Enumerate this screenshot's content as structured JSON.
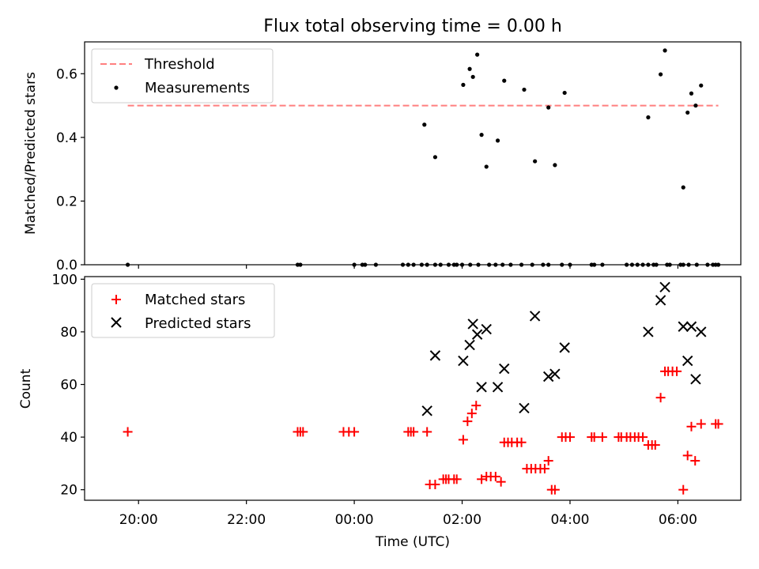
{
  "title": "Flux total observing time = 0.00 h",
  "chart_data": [
    {
      "type": "scatter",
      "ylabel": "Matched/Predicted stars",
      "xlim": [
        "19:00",
        "07:10"
      ],
      "ylim": [
        0,
        0.7
      ],
      "yticks": [
        "0.0",
        "0.2",
        "0.4",
        "0.6"
      ],
      "ytick_values": [
        0,
        0.2,
        0.4,
        0.6
      ],
      "xtick_hours": [
        20,
        22,
        24,
        26,
        28,
        30
      ],
      "grid": false,
      "legend_position": "upper-left",
      "legend": [
        {
          "label": "Threshold"
        },
        {
          "label": "Measurements"
        }
      ],
      "threshold": {
        "name": "Threshold",
        "value": 0.5,
        "x_start": "19:48",
        "x_end": "06:45",
        "color": "#ff7f7f"
      },
      "series": [
        {
          "name": "Measurements",
          "color": "#000000",
          "x_hours": [
            19.8,
            22.95,
            23.0,
            24.0,
            24.15,
            24.2,
            25.0,
            25.1,
            25.25,
            25.35,
            25.5,
            25.6,
            25.75,
            25.85,
            25.9,
            26.0,
            26.15,
            26.3,
            26.5,
            26.62,
            26.75,
            26.9,
            27.1,
            27.3,
            27.5,
            27.6,
            27.85,
            28.0,
            28.4,
            28.45,
            28.6,
            29.05,
            29.15,
            29.25,
            29.35,
            29.45,
            29.55,
            29.6,
            29.8,
            29.85,
            30.05,
            30.1,
            30.2,
            30.35,
            30.55,
            30.65,
            30.7,
            30.75,
            24.4,
            24.9,
            25.3,
            25.5,
            26.02,
            26.14,
            26.2,
            26.28,
            26.36,
            26.45,
            26.66,
            26.78,
            27.15,
            27.35,
            27.6,
            27.72,
            27.9,
            29.45,
            29.68,
            29.76,
            30.1,
            30.18,
            30.25,
            30.33,
            30.43
          ],
          "y": [
            0,
            0,
            0,
            0,
            0,
            0,
            0,
            0,
            0,
            0,
            0,
            0,
            0,
            0,
            0,
            0,
            0,
            0,
            0,
            0,
            0,
            0,
            0,
            0,
            0,
            0,
            0,
            0,
            0,
            0,
            0,
            0,
            0,
            0,
            0,
            0,
            0,
            0,
            0,
            0,
            0,
            0,
            0,
            0,
            0,
            0,
            0,
            0,
            0,
            0,
            0.44,
            0.338,
            0.565,
            0.615,
            0.59,
            0.66,
            0.408,
            0.308,
            0.39,
            0.578,
            0.55,
            0.325,
            0.494,
            0.313,
            0.54,
            0.463,
            0.598,
            0.673,
            0.243,
            0.478,
            0.538,
            0.5,
            0.563
          ]
        }
      ]
    },
    {
      "type": "scatter",
      "xlabel": "Time (UTC)",
      "ylabel": "Count",
      "xlim": [
        "19:00",
        "07:10"
      ],
      "ylim": [
        16,
        101
      ],
      "yticks": [
        "20",
        "40",
        "60",
        "80",
        "100"
      ],
      "ytick_values": [
        20,
        40,
        60,
        80,
        100
      ],
      "xticks": [
        "20:00",
        "22:00",
        "00:00",
        "02:00",
        "04:00",
        "06:00"
      ],
      "xtick_hours": [
        20,
        22,
        24,
        26,
        28,
        30
      ],
      "grid": false,
      "legend_position": "upper-left",
      "legend": [
        {
          "label": "Matched stars"
        },
        {
          "label": "Predicted stars"
        }
      ],
      "series": [
        {
          "name": "Matched stars",
          "marker": "+",
          "color": "#ff0000",
          "x_hours": [
            19.8,
            22.95,
            23.0,
            23.05,
            23.8,
            23.9,
            24.0,
            25.0,
            25.05,
            25.1,
            25.35,
            25.4,
            25.5,
            25.65,
            25.7,
            25.75,
            25.85,
            25.9,
            26.02,
            26.1,
            26.18,
            26.26,
            26.36,
            26.45,
            26.53,
            26.62,
            26.72,
            26.78,
            26.85,
            26.92,
            27.02,
            27.1,
            27.2,
            27.28,
            27.36,
            27.45,
            27.53,
            27.6,
            27.66,
            27.72,
            27.85,
            27.92,
            28.0,
            28.4,
            28.45,
            28.6,
            28.9,
            28.95,
            29.05,
            29.12,
            29.2,
            29.27,
            29.35,
            29.45,
            29.52,
            29.58,
            29.68,
            29.76,
            29.82,
            29.9,
            29.98,
            30.1,
            30.18,
            30.25,
            30.32,
            30.43,
            30.7,
            30.75
          ],
          "y": [
            42,
            42,
            42,
            42,
            42,
            42,
            42,
            42,
            42,
            42,
            42,
            22,
            22,
            24,
            24,
            24,
            24,
            24,
            39,
            46,
            49,
            52,
            24,
            25,
            25,
            25,
            23,
            38,
            38,
            38,
            38,
            38,
            28,
            28,
            28,
            28,
            28,
            31,
            20,
            20,
            40,
            40,
            40,
            40,
            40,
            40,
            40,
            40,
            40,
            40,
            40,
            40,
            40,
            37,
            37,
            37,
            55,
            65,
            65,
            65,
            65,
            20,
            33,
            44,
            31,
            45,
            45,
            45
          ]
        },
        {
          "name": "Predicted stars",
          "marker": "x",
          "color": "#000000",
          "x_hours": [
            25.35,
            25.5,
            26.02,
            26.14,
            26.2,
            26.28,
            26.36,
            26.45,
            26.66,
            26.78,
            27.15,
            27.35,
            27.6,
            27.72,
            27.9,
            29.45,
            29.68,
            29.76,
            30.1,
            30.18,
            30.25,
            30.33,
            30.43
          ],
          "y": [
            50,
            71,
            69,
            75,
            83,
            79,
            59,
            81,
            59,
            66,
            51,
            86,
            63,
            64,
            74,
            80,
            92,
            97,
            82,
            69,
            82,
            62,
            80
          ]
        }
      ]
    }
  ]
}
